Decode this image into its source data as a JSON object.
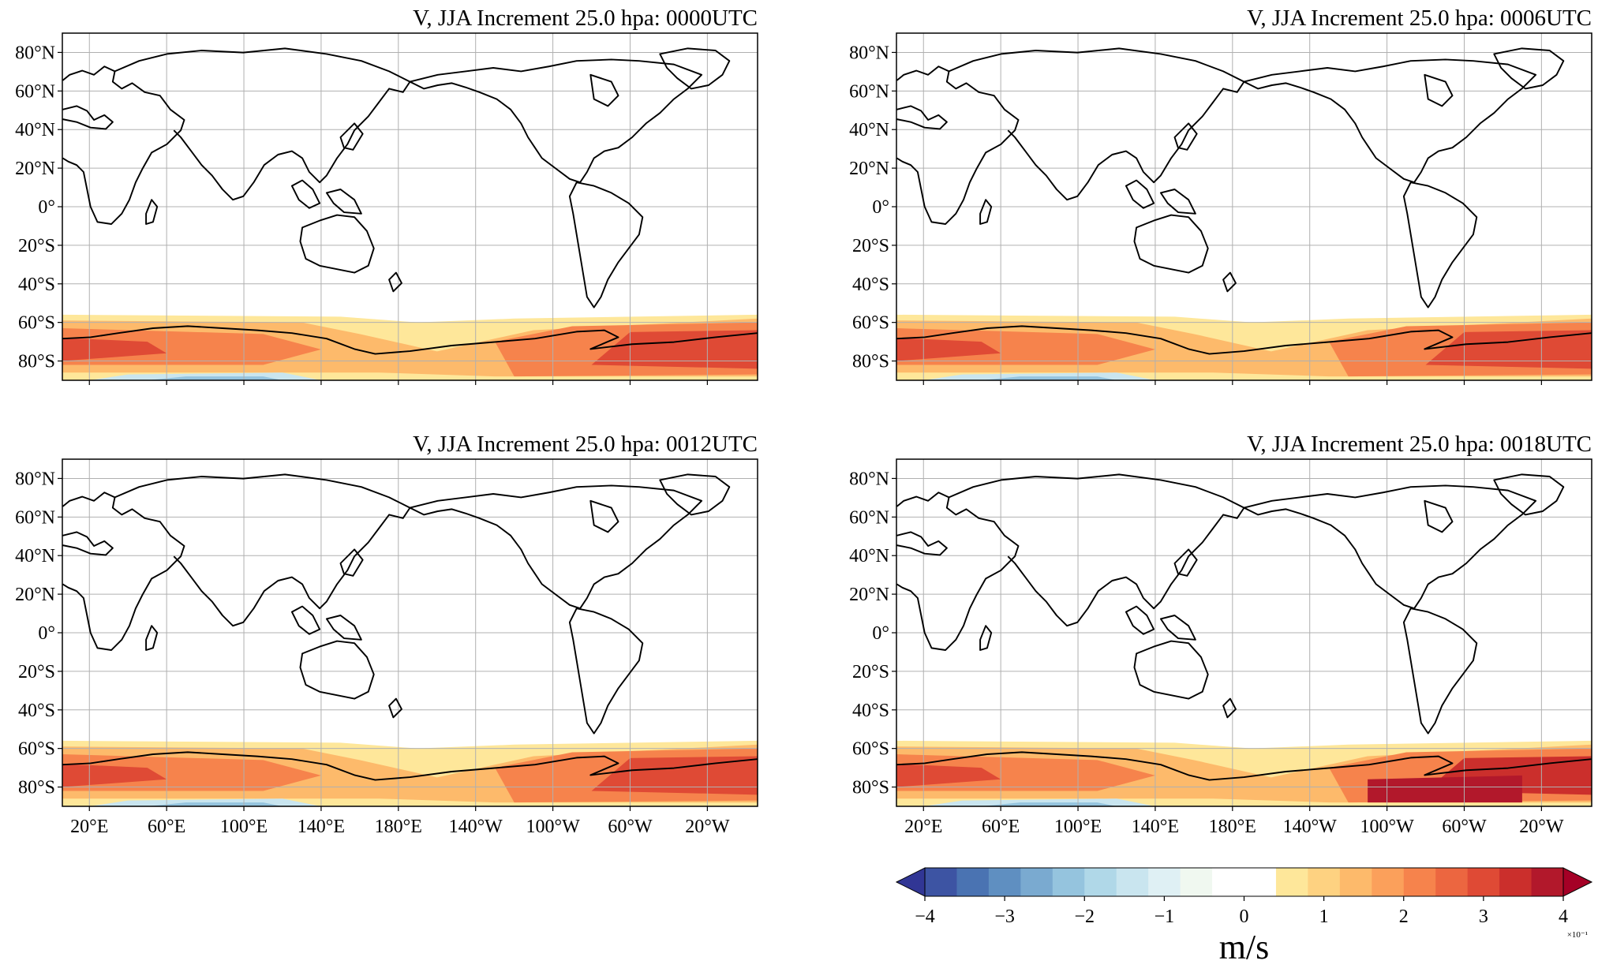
{
  "figure": {
    "panels": [
      {
        "title": "V, JJA Increment 25.0 hpa: 0000UTC"
      },
      {
        "title": "V, JJA Increment 25.0 hpa: 0006UTC"
      },
      {
        "title": "V, JJA Increment 25.0 hpa: 0012UTC"
      },
      {
        "title": "V, JJA Increment 25.0 hpa: 0018UTC"
      }
    ],
    "lat_ticks": [
      "80°N",
      "60°N",
      "40°N",
      "20°N",
      "0°",
      "20°S",
      "40°S",
      "60°S",
      "80°S"
    ],
    "lon_ticks": [
      "20°E",
      "60°E",
      "100°E",
      "140°E",
      "180°E",
      "140°W",
      "100°W",
      "60°W",
      "20°W"
    ]
  },
  "colorbar": {
    "label": "m/s",
    "exponent": "×10⁻¹",
    "ticks": [
      "−4",
      "−3",
      "−2",
      "−1",
      "0",
      "1",
      "2",
      "3",
      "4"
    ],
    "colors": [
      "#313695",
      "#3d54a3",
      "#4a73b2",
      "#5f8fc1",
      "#7aaad0",
      "#95c4de",
      "#b0d8e8",
      "#c9e5ef",
      "#dff0f4",
      "#f0f8f0",
      "#ffffff",
      "#ffffff",
      "#fee79a",
      "#fed281",
      "#fdba6b",
      "#fba05b",
      "#f6834c",
      "#ec6640",
      "#df4a35",
      "#cb2f2c",
      "#b2182b",
      "#a50026"
    ]
  },
  "chart_data": [
    {
      "type": "heatmap",
      "title": "V, JJA Increment 25.0 hpa: 0000UTC",
      "unit": "m/s",
      "scale": "×10⁻¹",
      "region": "Southern high latitudes 55°S–90°S",
      "range": [
        -0.05,
        0.35
      ],
      "summary": "positive increments (orange/red) along Antarctic coast, strongest near 0°–20°E and 80°W–20°W; weak negative near 90°S at 0°–60°E"
    },
    {
      "type": "heatmap",
      "title": "V, JJA Increment 25.0 hpa: 0006UTC",
      "unit": "m/s",
      "scale": "×10⁻¹",
      "region": "Southern high latitudes 55°S–90°S",
      "range": [
        -0.05,
        0.35
      ],
      "summary": "positive increments along Antarctic coast, strongest near 0°–20°E and 80°W–20°W"
    },
    {
      "type": "heatmap",
      "title": "V, JJA Increment 25.0 hpa: 0012UTC",
      "unit": "m/s",
      "scale": "×10⁻¹",
      "region": "Southern high latitudes 55°S–90°S",
      "range": [
        -0.05,
        0.3
      ],
      "summary": "positive increments along Antarctic coast, weaker band near 160°E–140°W"
    },
    {
      "type": "heatmap",
      "title": "V, JJA Increment 25.0 hpa: 0018UTC",
      "unit": "m/s",
      "scale": "×10⁻¹",
      "region": "Southern high latitudes 55°S–90°S",
      "range": [
        -0.05,
        0.4
      ],
      "summary": "positive increments along Antarctic coast, strongest (dark red) near 100°W–40°W"
    }
  ]
}
